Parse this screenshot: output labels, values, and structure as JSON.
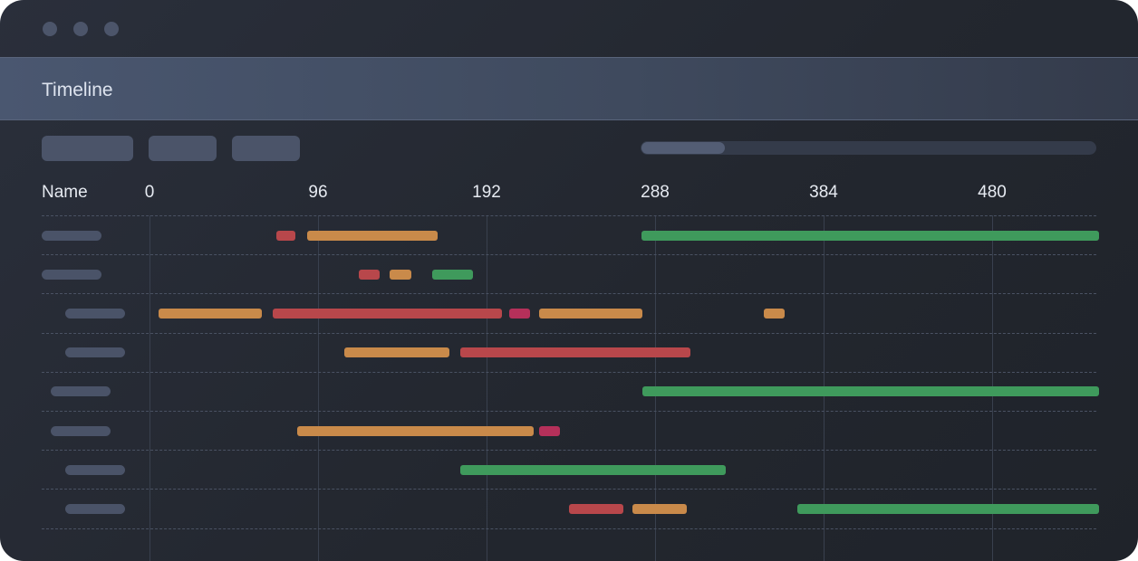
{
  "window": {
    "title": "Timeline",
    "controls": [
      "close-dot-icon",
      "minimize-dot-icon",
      "maximize-dot-icon"
    ]
  },
  "toolbar": {
    "buttons": [
      "toolbar-button-1",
      "toolbar-button-2",
      "toolbar-button-3"
    ],
    "scroll_position": 0.18
  },
  "timeline": {
    "name_header": "Name",
    "ticks": [
      "0",
      "96",
      "192",
      "288",
      "384",
      "480"
    ],
    "colors": {
      "orange": "#c98a4a",
      "red": "#b8474b",
      "magenta": "#b5305a",
      "green": "#3f9a5c"
    },
    "rows": [
      {
        "indent": 0,
        "bars": [
          {
            "start": 72,
            "end": 83,
            "color": "red"
          },
          {
            "start": 90,
            "end": 164,
            "color": "orange"
          },
          {
            "start": 280,
            "end": 541,
            "color": "green"
          }
        ]
      },
      {
        "indent": 0,
        "bars": [
          {
            "start": 119,
            "end": 131,
            "color": "red"
          },
          {
            "start": 137,
            "end": 149,
            "color": "orange"
          },
          {
            "start": 161,
            "end": 184,
            "color": "green"
          }
        ]
      },
      {
        "indent": 2,
        "bars": [
          {
            "start": 5,
            "end": 64,
            "color": "orange"
          },
          {
            "start": 70,
            "end": 201,
            "color": "red"
          },
          {
            "start": 205,
            "end": 217,
            "color": "magenta"
          },
          {
            "start": 222,
            "end": 281,
            "color": "orange"
          },
          {
            "start": 350,
            "end": 362,
            "color": "orange"
          }
        ]
      },
      {
        "indent": 2,
        "bars": [
          {
            "start": 111,
            "end": 171,
            "color": "orange"
          },
          {
            "start": 177,
            "end": 308,
            "color": "red"
          }
        ]
      },
      {
        "indent": 1,
        "bars": [
          {
            "start": 281,
            "end": 541,
            "color": "green"
          }
        ]
      },
      {
        "indent": 1,
        "bars": [
          {
            "start": 84,
            "end": 219,
            "color": "orange"
          },
          {
            "start": 222,
            "end": 234,
            "color": "magenta"
          }
        ]
      },
      {
        "indent": 2,
        "bars": [
          {
            "start": 177,
            "end": 328,
            "color": "green"
          }
        ]
      },
      {
        "indent": 2,
        "bars": [
          {
            "start": 239,
            "end": 270,
            "color": "red"
          },
          {
            "start": 275,
            "end": 306,
            "color": "orange"
          },
          {
            "start": 369,
            "end": 541,
            "color": "green"
          }
        ]
      }
    ]
  }
}
